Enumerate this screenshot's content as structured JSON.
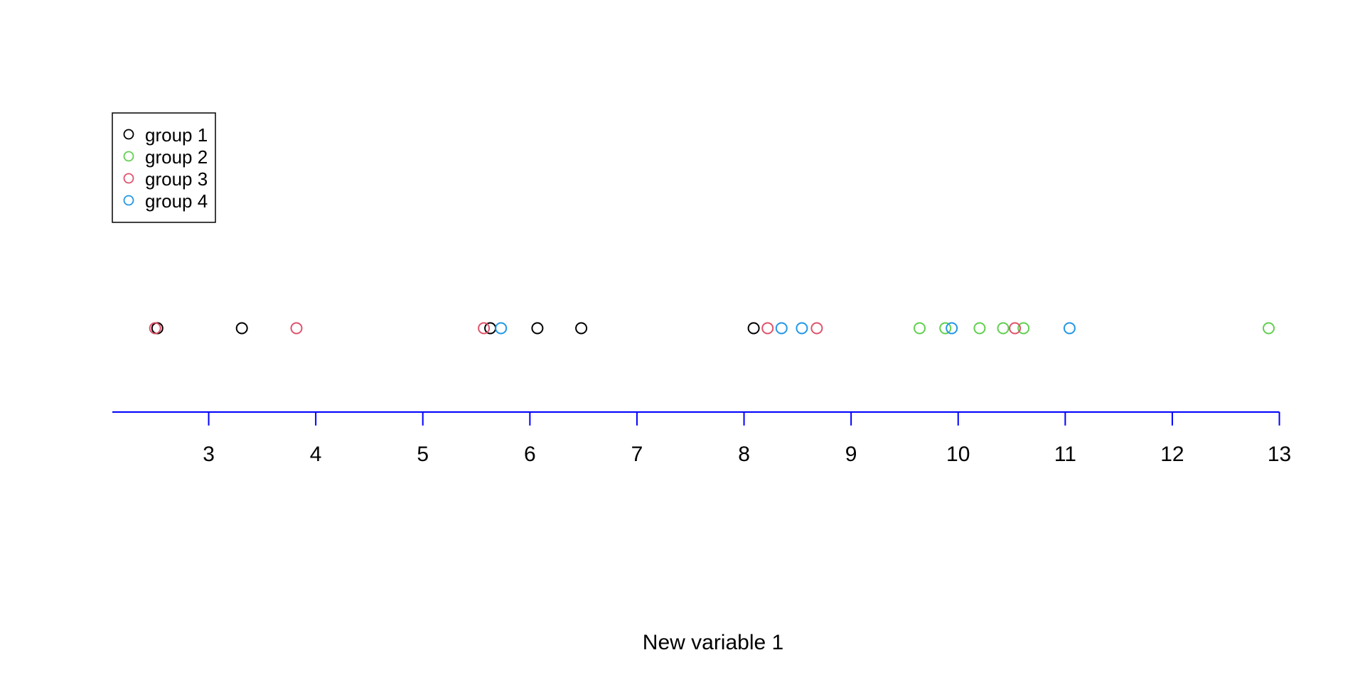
{
  "chart_data": {
    "type": "scatter",
    "title": "",
    "xlabel": "New variable 1",
    "ylabel": "",
    "xlim": [
      2.1,
      13
    ],
    "x_ticks": [
      3,
      4,
      5,
      6,
      7,
      8,
      9,
      10,
      11,
      12,
      13
    ],
    "grid": false,
    "legend_position": "top-left",
    "axis_color": "#0000ff",
    "series": [
      {
        "name": "group 1",
        "color": "#000000",
        "x": [
          2.52,
          3.31,
          5.63,
          6.07,
          6.48,
          8.09
        ]
      },
      {
        "name": "group 2",
        "color": "#61d04f",
        "x": [
          9.64,
          9.88,
          10.2,
          10.42,
          10.61,
          12.9
        ]
      },
      {
        "name": "group 3",
        "color": "#df536b",
        "x": [
          2.5,
          3.82,
          5.57,
          8.22,
          8.68,
          10.53
        ]
      },
      {
        "name": "group 4",
        "color": "#2297e6",
        "x": [
          5.73,
          8.35,
          8.54,
          9.94,
          11.04
        ]
      }
    ]
  }
}
